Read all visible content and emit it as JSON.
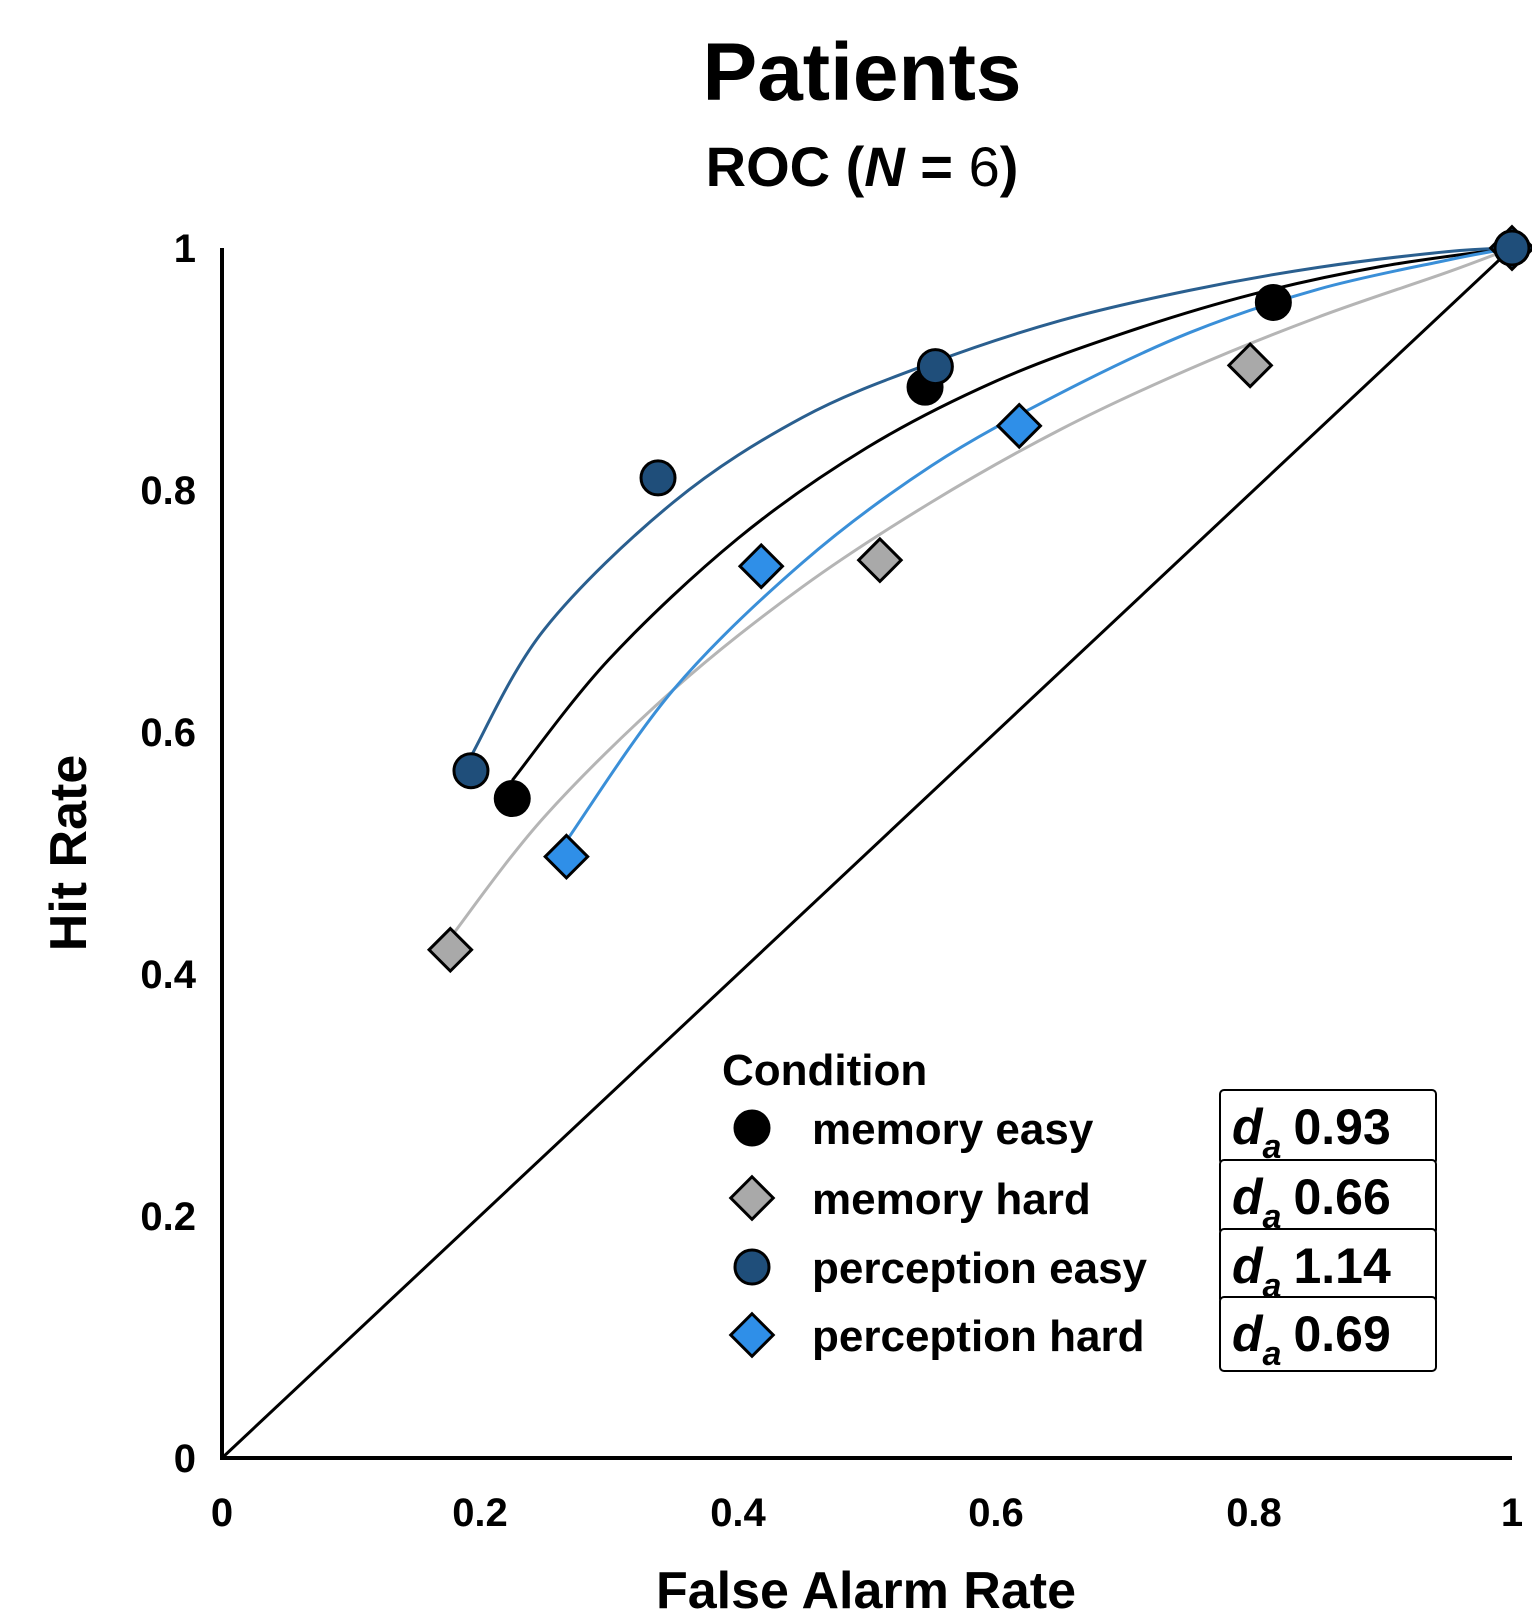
{
  "chart_data": {
    "type": "scatter",
    "title": "Patients",
    "subtitle": {
      "prefix": "ROC (",
      "n_symbol": "N",
      "equals": " = ",
      "n_value": "6",
      "suffix": ")"
    },
    "xlabel": "False Alarm Rate",
    "ylabel": "Hit Rate",
    "xlim": [
      0,
      1
    ],
    "ylim": [
      0,
      1
    ],
    "x_ticks": [
      {
        "value": 0,
        "label": "0"
      },
      {
        "value": 0.2,
        "label": "0.2"
      },
      {
        "value": 0.4,
        "label": "0.4"
      },
      {
        "value": 0.6,
        "label": "0.6"
      },
      {
        "value": 0.8,
        "label": "0.8"
      },
      {
        "value": 1,
        "label": "1"
      }
    ],
    "y_ticks": [
      {
        "value": 0,
        "label": "0"
      },
      {
        "value": 0.2,
        "label": "0.2"
      },
      {
        "value": 0.4,
        "label": "0.4"
      },
      {
        "value": 0.6,
        "label": "0.6"
      },
      {
        "value": 0.8,
        "label": "0.8"
      },
      {
        "value": 1,
        "label": "1"
      }
    ],
    "grid": false,
    "chance_line": true,
    "legend": {
      "title": "Condition",
      "placement": "bottom-right"
    },
    "series": [
      {
        "name": "memory easy",
        "marker": "circle",
        "color": "#000000",
        "line_color": "#000000",
        "da_symbol": "d",
        "da_sub": "a",
        "da_value": "0.93",
        "points": [
          {
            "x": 0.225,
            "y": 0.545
          },
          {
            "x": 0.545,
            "y": 0.885
          },
          {
            "x": 0.815,
            "y": 0.955
          },
          {
            "x": 1.0,
            "y": 1.0
          }
        ],
        "curve": [
          {
            "x": 0.225,
            "y": 0.56
          },
          {
            "x": 0.3,
            "y": 0.66
          },
          {
            "x": 0.4,
            "y": 0.76
          },
          {
            "x": 0.5,
            "y": 0.835
          },
          {
            "x": 0.6,
            "y": 0.89
          },
          {
            "x": 0.7,
            "y": 0.93
          },
          {
            "x": 0.8,
            "y": 0.962
          },
          {
            "x": 0.9,
            "y": 0.985
          },
          {
            "x": 1.0,
            "y": 1.0
          }
        ]
      },
      {
        "name": "memory hard",
        "marker": "diamond",
        "color": "#a9a9a9",
        "line_color": "#b5b5b5",
        "da_symbol": "d",
        "da_sub": "a",
        "da_value": "0.66",
        "points": [
          {
            "x": 0.177,
            "y": 0.42
          },
          {
            "x": 0.51,
            "y": 0.742
          },
          {
            "x": 0.797,
            "y": 0.903
          },
          {
            "x": 1.0,
            "y": 1.0
          }
        ],
        "curve": [
          {
            "x": 0.177,
            "y": 0.43
          },
          {
            "x": 0.25,
            "y": 0.53
          },
          {
            "x": 0.35,
            "y": 0.635
          },
          {
            "x": 0.45,
            "y": 0.72
          },
          {
            "x": 0.55,
            "y": 0.79
          },
          {
            "x": 0.65,
            "y": 0.85
          },
          {
            "x": 0.75,
            "y": 0.9
          },
          {
            "x": 0.85,
            "y": 0.943
          },
          {
            "x": 0.95,
            "y": 0.98
          },
          {
            "x": 1.0,
            "y": 1.0
          }
        ]
      },
      {
        "name": "perception easy",
        "marker": "circle",
        "color": "#1f4e7a",
        "line_color": "#2a5f8f",
        "da_symbol": "d",
        "da_sub": "a",
        "da_value": "1.14",
        "points": [
          {
            "x": 0.193,
            "y": 0.568
          },
          {
            "x": 0.338,
            "y": 0.81
          },
          {
            "x": 0.553,
            "y": 0.902
          },
          {
            "x": 1.0,
            "y": 1.0
          }
        ],
        "curve": [
          {
            "x": 0.193,
            "y": 0.58
          },
          {
            "x": 0.25,
            "y": 0.685
          },
          {
            "x": 0.35,
            "y": 0.79
          },
          {
            "x": 0.45,
            "y": 0.86
          },
          {
            "x": 0.55,
            "y": 0.905
          },
          {
            "x": 0.65,
            "y": 0.94
          },
          {
            "x": 0.75,
            "y": 0.965
          },
          {
            "x": 0.85,
            "y": 0.984
          },
          {
            "x": 0.95,
            "y": 0.997
          },
          {
            "x": 1.0,
            "y": 1.0
          }
        ]
      },
      {
        "name": "perception hard",
        "marker": "diamond",
        "color": "#2f8fe8",
        "line_color": "#3a8fd8",
        "da_symbol": "d",
        "da_sub": "a",
        "da_value": "0.69",
        "points": [
          {
            "x": 0.267,
            "y": 0.497
          },
          {
            "x": 0.418,
            "y": 0.737
          },
          {
            "x": 0.618,
            "y": 0.853
          },
          {
            "x": 1.0,
            "y": 1.0
          }
        ],
        "curve": [
          {
            "x": 0.267,
            "y": 0.51
          },
          {
            "x": 0.35,
            "y": 0.635
          },
          {
            "x": 0.45,
            "y": 0.74
          },
          {
            "x": 0.55,
            "y": 0.82
          },
          {
            "x": 0.65,
            "y": 0.88
          },
          {
            "x": 0.75,
            "y": 0.93
          },
          {
            "x": 0.85,
            "y": 0.966
          },
          {
            "x": 0.95,
            "y": 0.99
          },
          {
            "x": 1.0,
            "y": 1.0
          }
        ]
      }
    ]
  }
}
